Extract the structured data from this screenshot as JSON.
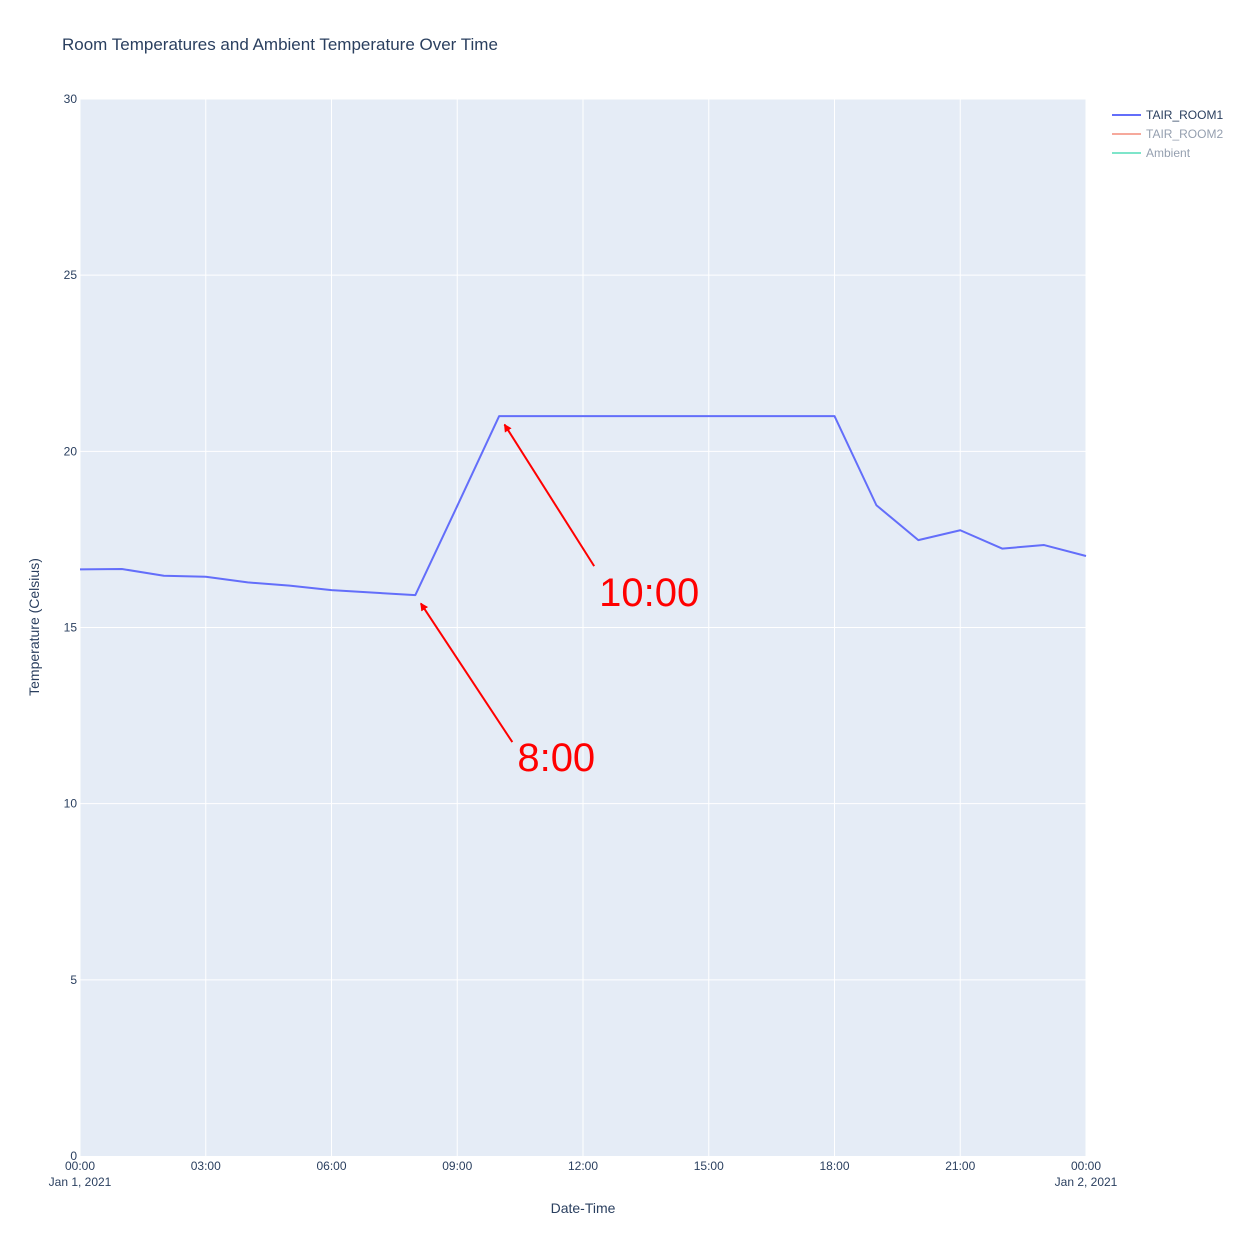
{
  "chart_data": {
    "type": "line",
    "title": "Room Temperatures and Ambient Temperature Over Time",
    "xlabel": "Date-Time",
    "ylabel": "Temperature (Celsius)",
    "ylim": [
      0,
      30
    ],
    "y_ticks": [
      0,
      5,
      10,
      15,
      20,
      25,
      30
    ],
    "xlim": [
      "2021-01-01 00:00",
      "2021-01-02 00:00"
    ],
    "x_ticks": [
      {
        "t": 0,
        "label": "00:00",
        "sub": "Jan 1, 2021"
      },
      {
        "t": 3,
        "label": "03:00",
        "sub": ""
      },
      {
        "t": 6,
        "label": "06:00",
        "sub": ""
      },
      {
        "t": 9,
        "label": "09:00",
        "sub": ""
      },
      {
        "t": 12,
        "label": "12:00",
        "sub": ""
      },
      {
        "t": 15,
        "label": "15:00",
        "sub": ""
      },
      {
        "t": 18,
        "label": "18:00",
        "sub": ""
      },
      {
        "t": 21,
        "label": "21:00",
        "sub": ""
      },
      {
        "t": 24,
        "label": "00:00",
        "sub": "Jan 2, 2021"
      }
    ],
    "grid": true,
    "legend_position": "top-right",
    "series": [
      {
        "name": "TAIR_ROOM1",
        "color": "#636efa",
        "visible": true,
        "x": [
          "2021-01-01 00:00",
          "2021-01-01 01:00",
          "2021-01-01 02:00",
          "2021-01-01 03:00",
          "2021-01-01 04:00",
          "2021-01-01 05:00",
          "2021-01-01 06:00",
          "2021-01-01 07:00",
          "2021-01-01 08:00",
          "2021-01-01 09:00",
          "2021-01-01 10:00",
          "2021-01-01 11:00",
          "2021-01-01 12:00",
          "2021-01-01 13:00",
          "2021-01-01 14:00",
          "2021-01-01 15:00",
          "2021-01-01 16:00",
          "2021-01-01 17:00",
          "2021-01-01 18:00",
          "2021-01-01 19:00",
          "2021-01-01 20:00",
          "2021-01-01 21:00",
          "2021-01-01 22:00",
          "2021-01-01 23:00",
          "2021-01-02 00:00"
        ],
        "hours": [
          0,
          1,
          2,
          3,
          4,
          5,
          6,
          7,
          8,
          9,
          10,
          11,
          12,
          13,
          14,
          15,
          16,
          17,
          18,
          19,
          20,
          21,
          22,
          23,
          24
        ],
        "values": [
          16.65,
          16.66,
          16.47,
          16.44,
          16.28,
          16.19,
          16.06,
          15.99,
          15.92,
          18.45,
          21.0,
          21.0,
          21.0,
          21.0,
          21.0,
          21.0,
          21.0,
          21.0,
          21.0,
          18.47,
          17.48,
          17.76,
          17.24,
          17.34,
          17.03
        ]
      },
      {
        "name": "TAIR_ROOM2",
        "color": "#ef553b",
        "visible": false,
        "values": []
      },
      {
        "name": "Ambient",
        "color": "#00cc96",
        "visible": false,
        "values": []
      }
    ],
    "annotations": [
      {
        "text": "10:00",
        "point_hour": 10,
        "point_value": 21.0,
        "color": "#ff0000"
      },
      {
        "text": "8:00",
        "point_hour": 8,
        "point_value": 15.92,
        "color": "#ff0000"
      }
    ],
    "colors": {
      "plot_background": "#e5ecf6",
      "grid": "#ffffff",
      "text": "#2a3f5f",
      "legend_hidden_text": "#a0a8b4"
    }
  }
}
